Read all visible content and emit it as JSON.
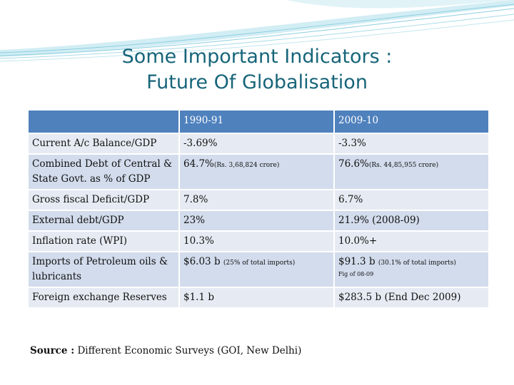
{
  "title": {
    "line1": "Some Important Indicators :",
    "line2": "Future Of Globalisation"
  },
  "table": {
    "headers": [
      "",
      "1990-91",
      "2009-10"
    ],
    "rows": [
      {
        "indicator": "Current A/c Balance/GDP",
        "v1990": "-3.69%",
        "v1990_note": "",
        "v2009": "-3.3%",
        "v2009_note": "",
        "v2009_sub": ""
      },
      {
        "indicator": "Combined Debt of Central & State Govt. as % of GDP",
        "v1990": "64.7%",
        "v1990_note": "(Rs. 3,68,824 crore)",
        "v2009": "76.6%",
        "v2009_note": "(Rs. 44,85,955 crore)",
        "v2009_sub": ""
      },
      {
        "indicator": "Gross fiscal Deficit/GDP",
        "v1990": "7.8%",
        "v1990_note": "",
        "v2009": "6.7%",
        "v2009_note": "",
        "v2009_sub": ""
      },
      {
        "indicator": "External debt/GDP",
        "v1990": "23%",
        "v1990_note": "",
        "v2009": "21.9% (2008-09)",
        "v2009_note": "",
        "v2009_sub": ""
      },
      {
        "indicator": "Inflation rate (WPI)",
        "v1990": "10.3%",
        "v1990_note": "",
        "v2009": "10.0%+",
        "v2009_note": "",
        "v2009_sub": ""
      },
      {
        "indicator": "Imports of Petroleum oils & lubricants",
        "v1990": "$6.03 b ",
        "v1990_note": "(25% of total imports)",
        "v2009": "$91.3 b ",
        "v2009_note": "(30.1% of total imports)",
        "v2009_sub": "Fig of 08-09"
      },
      {
        "indicator": "Foreign exchange Reserves",
        "v1990": "$1.1 b",
        "v1990_note": "",
        "v2009": "$283.5 b (End Dec 2009)",
        "v2009_note": "",
        "v2009_sub": ""
      }
    ]
  },
  "source": {
    "label": "Source :",
    "text": " Different Economic Surveys (GOI, New Delhi)"
  },
  "colors": {
    "title": "#17657a",
    "header_bg": "#4f81bd",
    "row_light": "#e6ebf3",
    "row_dark": "#d2dcec"
  }
}
